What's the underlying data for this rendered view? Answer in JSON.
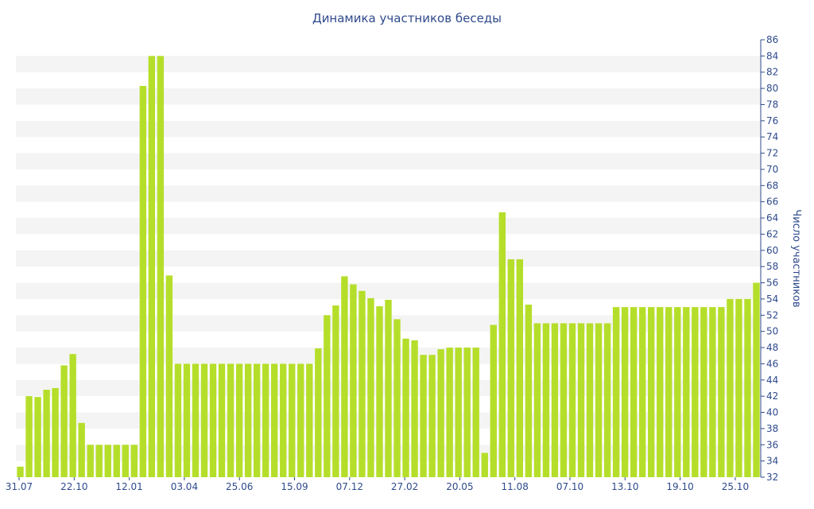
{
  "chart_data": {
    "type": "bar",
    "title": "Динамика участников беседы",
    "xlabel": "",
    "ylabel": "Число участников",
    "ylim": [
      32,
      86
    ],
    "y_ticks": [
      32,
      34,
      36,
      38,
      40,
      42,
      44,
      46,
      48,
      50,
      52,
      54,
      56,
      58,
      60,
      62,
      64,
      66,
      68,
      70,
      72,
      74,
      76,
      78,
      80,
      82,
      84,
      86
    ],
    "y_axis_side": "right",
    "grid": "alternating horizontal bands",
    "bar_color": "#b5de2a",
    "band_color": "#f4f4f4",
    "text_color": "#2e4a8c",
    "x_tick_labels": [
      "31.07",
      "22.10",
      "12.01",
      "03.04",
      "25.06",
      "15.09",
      "07.12",
      "27.02",
      "20.05",
      "11.08",
      "07.10",
      "13.10",
      "19.10",
      "25.10"
    ],
    "values": [
      33.3,
      42,
      41.9,
      42.8,
      43,
      45.8,
      47.2,
      38.7,
      36,
      36,
      36,
      36,
      36,
      36,
      80.3,
      84,
      84,
      56.9,
      46,
      46,
      46,
      46,
      46,
      46,
      46,
      46,
      46,
      46,
      46,
      46,
      46,
      46,
      46,
      46,
      47.9,
      52,
      53.2,
      56.8,
      55.8,
      55,
      54.1,
      53.1,
      53.9,
      51.5,
      49.1,
      48.9,
      47.1,
      47.1,
      47.8,
      48,
      48,
      48,
      48,
      35,
      50.8,
      64.7,
      58.9,
      58.9,
      53.3,
      51,
      51,
      51,
      51,
      51,
      51,
      51,
      51,
      51,
      53,
      53,
      53,
      53,
      53,
      53,
      53,
      53,
      53,
      53,
      53,
      53,
      53,
      54,
      54,
      54,
      56
    ]
  }
}
